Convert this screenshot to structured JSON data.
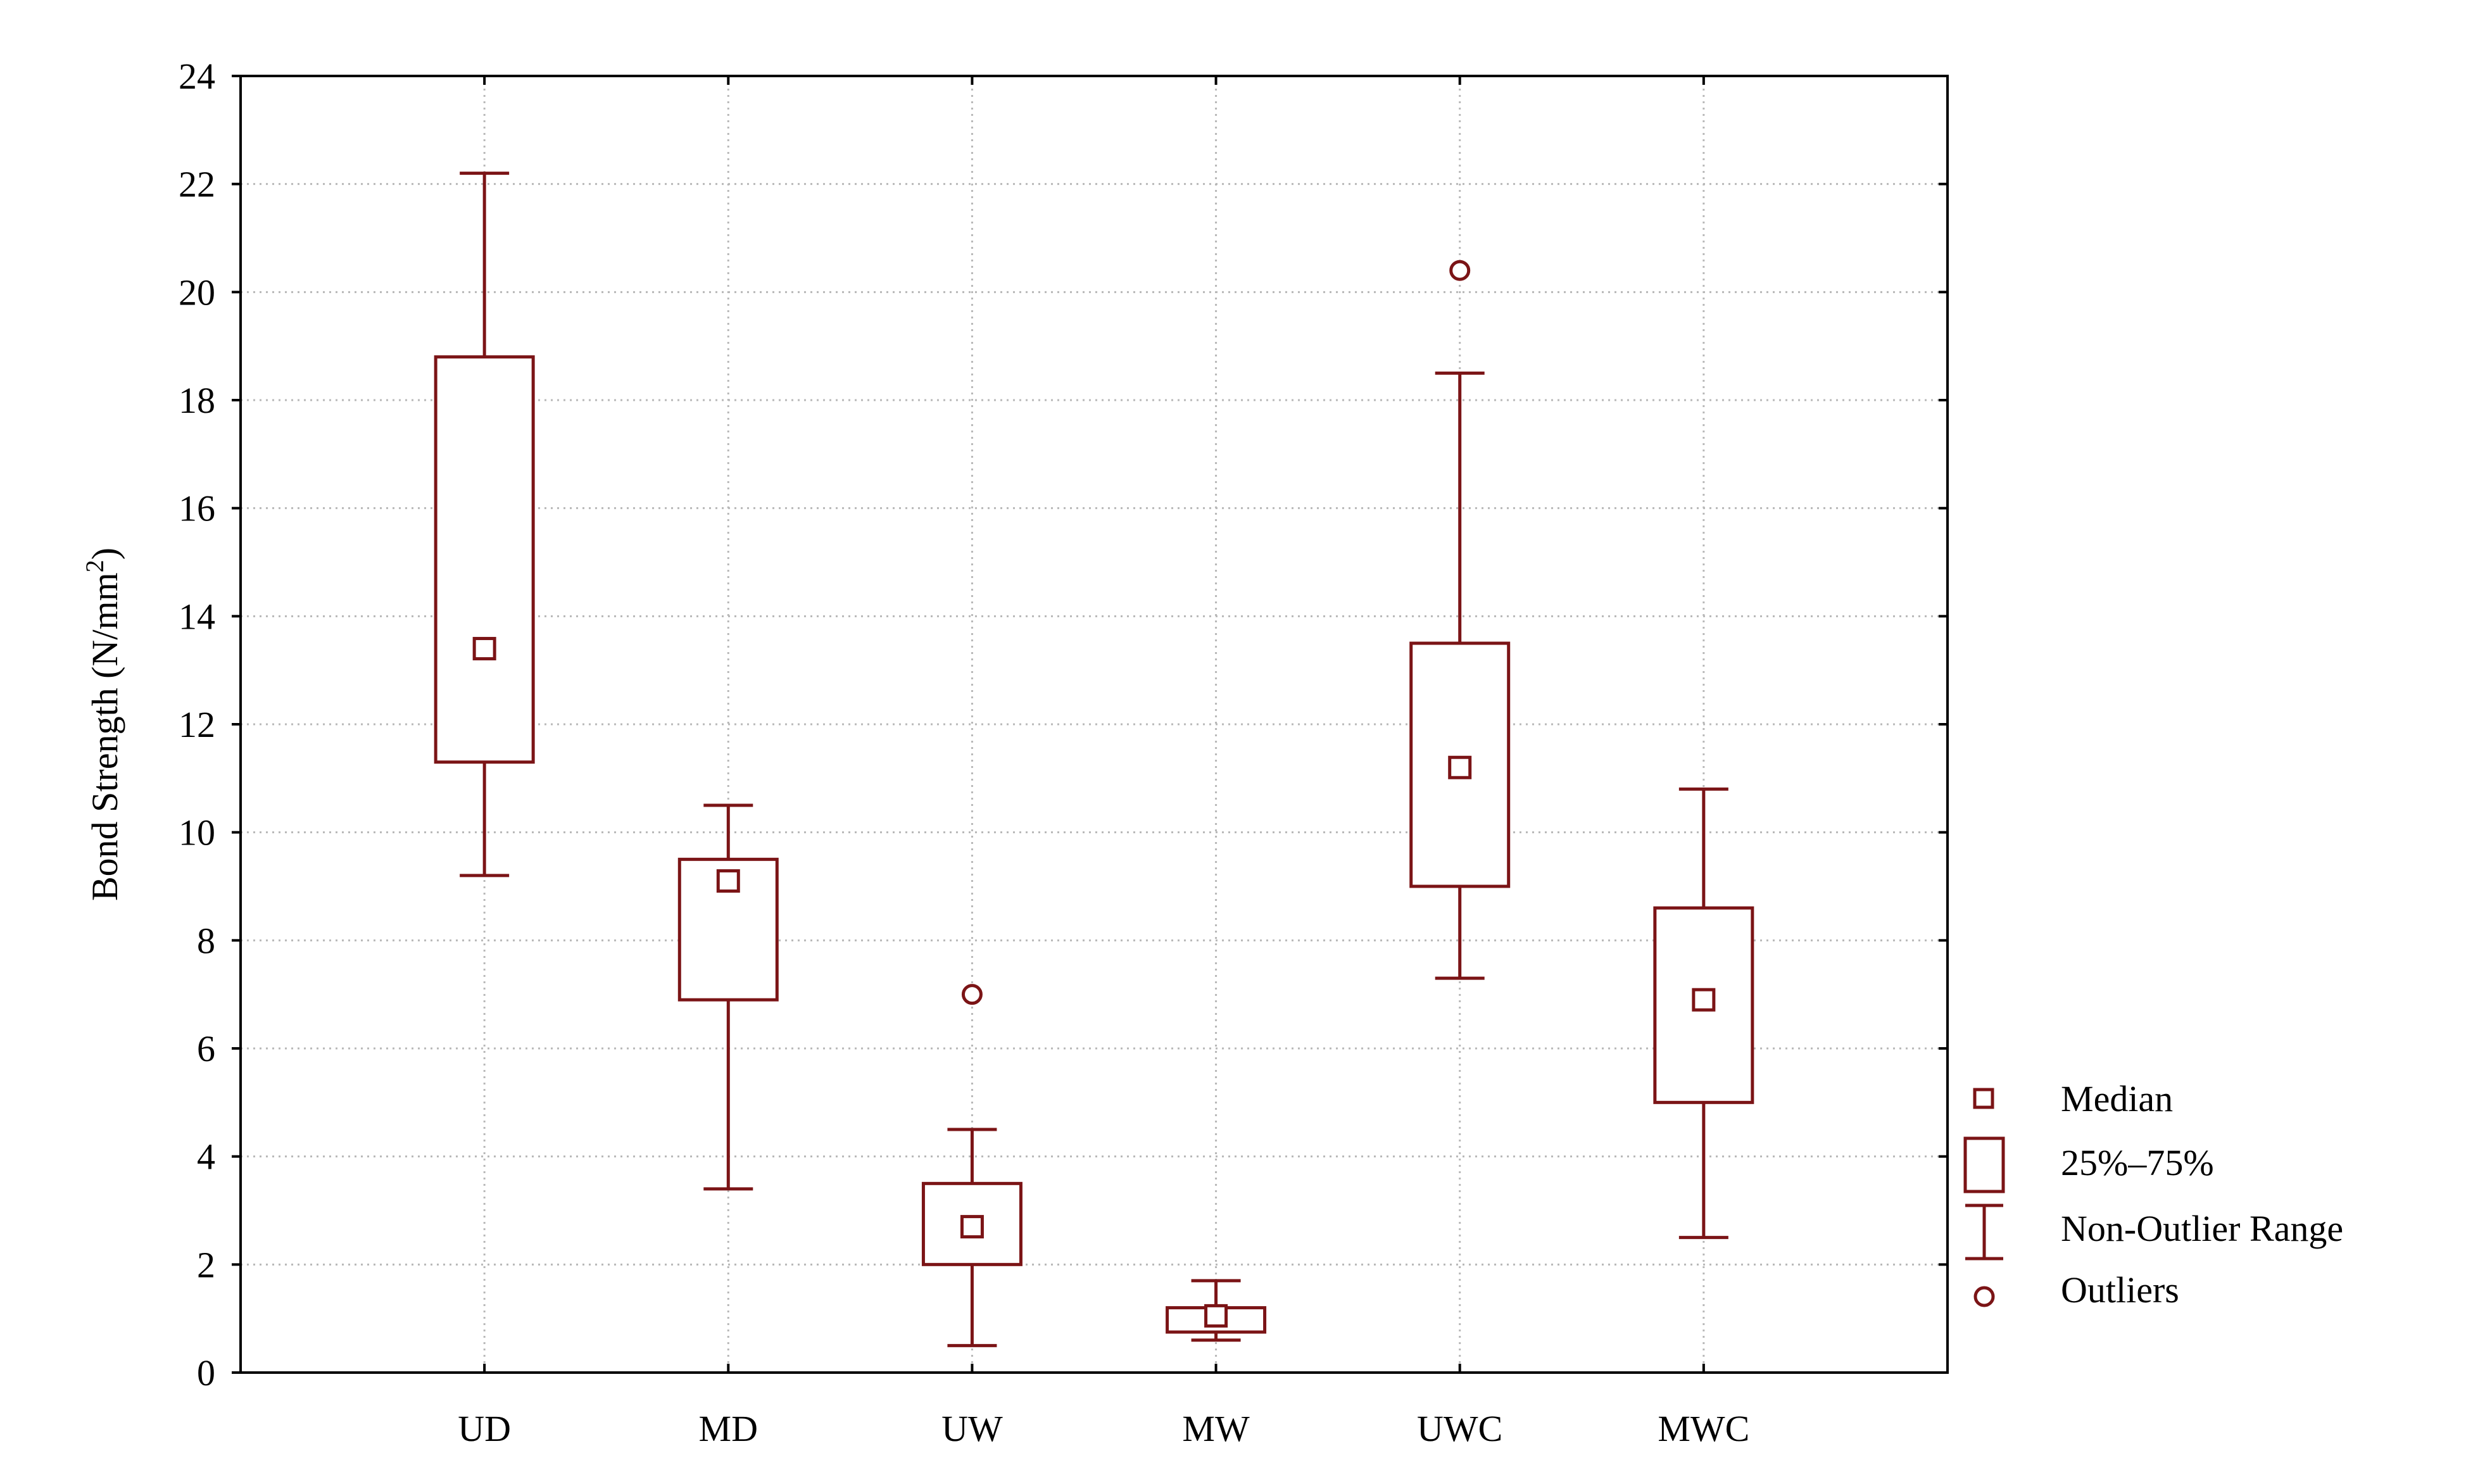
{
  "chart_data": {
    "type": "boxplot",
    "title": "",
    "xlabel": "",
    "ylabel": "Bond Strength (N/mm",
    "ylabel_superscript": "2",
    "ylabel_suffix": ")",
    "ylim": [
      0,
      24
    ],
    "yticks": [
      "0",
      "2",
      "4",
      "6",
      "8",
      "10",
      "12",
      "14",
      "16",
      "18",
      "20",
      "22",
      "24"
    ],
    "grid": true,
    "color": "#7b1416",
    "categories": [
      "UD",
      "MD",
      "UW",
      "MW",
      "UWC",
      "MWC"
    ],
    "series": [
      {
        "name": "UD",
        "median": 13.4,
        "q1": 11.3,
        "q3": 18.8,
        "whisker_low": 9.2,
        "whisker_high": 22.2,
        "outliers": []
      },
      {
        "name": "MD",
        "median": 9.1,
        "q1": 6.9,
        "q3": 9.5,
        "whisker_low": 3.4,
        "whisker_high": 10.5,
        "outliers": []
      },
      {
        "name": "UW",
        "median": 2.7,
        "q1": 2.0,
        "q3": 3.5,
        "whisker_low": 0.5,
        "whisker_high": 4.5,
        "outliers": [
          7.0
        ]
      },
      {
        "name": "MW",
        "median": 1.05,
        "q1": 0.75,
        "q3": 1.2,
        "whisker_low": 0.6,
        "whisker_high": 1.7,
        "outliers": []
      },
      {
        "name": "UWC",
        "median": 11.2,
        "q1": 9.0,
        "q3": 13.5,
        "whisker_low": 7.3,
        "whisker_high": 18.5,
        "outliers": [
          20.4
        ]
      },
      {
        "name": "MWC",
        "median": 6.9,
        "q1": 5.0,
        "q3": 8.6,
        "whisker_low": 2.5,
        "whisker_high": 10.8,
        "outliers": []
      }
    ],
    "legend": {
      "position": "right",
      "entries": [
        "Median",
        "25%–75%",
        "Non-Outlier Range",
        "Outliers"
      ]
    }
  }
}
